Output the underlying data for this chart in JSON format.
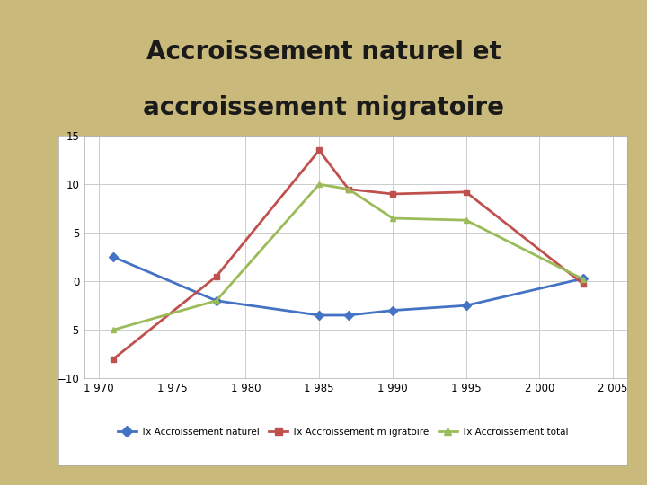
{
  "title_line1": "Accroissement naturel et",
  "title_line2": "accroissement migratoire",
  "x_values": [
    1971,
    1978,
    1985,
    1987,
    1990,
    1995,
    2003
  ],
  "naturel": [
    2.5,
    -2.0,
    -3.5,
    -3.5,
    -3.0,
    -2.5,
    0.3
  ],
  "migratoire": [
    -8.0,
    0.5,
    13.5,
    9.5,
    9.0,
    9.2,
    -0.3
  ],
  "total": [
    -5.0,
    -2.0,
    10.0,
    9.5,
    6.5,
    6.3,
    0.2
  ],
  "color_naturel": "#4472C4",
  "color_migratoire": "#C0504D",
  "color_total": "#9BBB59",
  "xlim": [
    1969,
    2006
  ],
  "ylim": [
    -10,
    15
  ],
  "yticks": [
    -10,
    -5,
    0,
    5,
    10,
    15
  ],
  "xticks": [
    1970,
    1975,
    1980,
    1985,
    1990,
    1995,
    2000,
    2005
  ],
  "xtick_labels": [
    "1 970",
    "1 975",
    "1 980",
    "1 985",
    "1 990",
    "1 995",
    "2 000",
    "2 005"
  ],
  "legend_naturel": "Tx Accroissement naturel",
  "legend_migratoire": "Tx Accroissement m igratoire",
  "legend_total": "Tx Accroissement total",
  "bg_outer": "#C9B97A",
  "bg_chart": "#FFFFFF",
  "title_color": "#1A1A1A",
  "title_fontsize": 20,
  "marker_naturel": "D",
  "marker_migratoire": "s",
  "marker_total": "^",
  "linewidth": 2.0,
  "markersize": 5
}
